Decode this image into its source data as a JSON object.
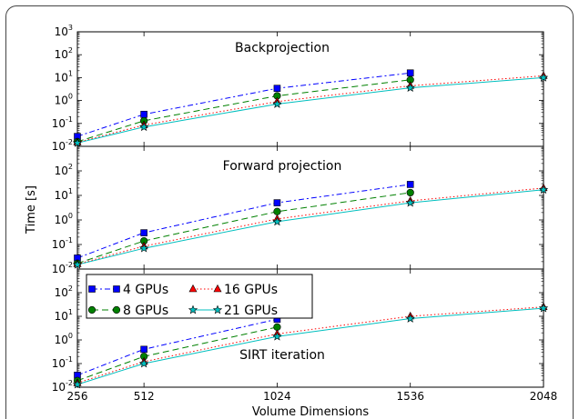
{
  "chart_data": {
    "type": "line",
    "xlabel": "Volume Dimensions",
    "ylabel": "Time [s]",
    "x_ticks": [
      "256",
      "512",
      "1024",
      "1536",
      "2048"
    ],
    "x_range": [
      256,
      2048
    ],
    "y_scale": "log",
    "y_range": [
      0.01,
      1000
    ],
    "y_tick_bases": [
      "10",
      "10",
      "10",
      "10",
      "10",
      "10"
    ],
    "y_tick_exps": [
      "-2",
      "-1",
      "0",
      "1",
      "2",
      "3"
    ],
    "legend": {
      "placement": "upper-left of bottom panel",
      "columns": 2
    },
    "series_styles": [
      {
        "name": "4 GPUs",
        "color": "#0000ff",
        "marker": "square",
        "dash": "6,3,2,3"
      },
      {
        "name": "8 GPUs",
        "color": "#008000",
        "marker": "circle",
        "dash": "7,4"
      },
      {
        "name": "16 GPUs",
        "color": "#ff0000",
        "marker": "triangle",
        "dash": "1.5,2.5"
      },
      {
        "name": "21 GPUs",
        "color": "#00bfbf",
        "marker": "star",
        "dash": ""
      }
    ],
    "panels": [
      {
        "title": "Backprojection",
        "series": [
          {
            "name": "4 GPUs",
            "x": [
              256,
              512,
              1024,
              1536
            ],
            "y": [
              0.027,
              0.25,
              3.4,
              16
            ]
          },
          {
            "name": "8 GPUs",
            "x": [
              256,
              512,
              1024,
              1536
            ],
            "y": [
              0.016,
              0.13,
              1.6,
              8
            ]
          },
          {
            "name": "16 GPUs",
            "x": [
              256,
              512,
              1024,
              1536,
              2048
            ],
            "y": [
              0.015,
              0.085,
              0.9,
              4.4,
              12
            ]
          },
          {
            "name": "21 GPUs",
            "x": [
              256,
              512,
              1024,
              1536,
              2048
            ],
            "y": [
              0.014,
              0.07,
              0.7,
              3.6,
              10
            ]
          }
        ]
      },
      {
        "title": "Forward  projection",
        "series": [
          {
            "name": "4 GPUs",
            "x": [
              256,
              512,
              1024,
              1536
            ],
            "y": [
              0.028,
              0.3,
              5,
              28
            ]
          },
          {
            "name": "8 GPUs",
            "x": [
              256,
              512,
              1024,
              1536
            ],
            "y": [
              0.017,
              0.14,
              2.2,
              13
            ]
          },
          {
            "name": "16 GPUs",
            "x": [
              256,
              512,
              1024,
              1536,
              2048
            ],
            "y": [
              0.016,
              0.085,
              1.1,
              6,
              20
            ]
          },
          {
            "name": "21 GPUs",
            "x": [
              256,
              512,
              1024,
              1536,
              2048
            ],
            "y": [
              0.015,
              0.07,
              0.85,
              5,
              17
            ]
          }
        ]
      },
      {
        "title": "SIRT iteration",
        "series": [
          {
            "name": "4 GPUs",
            "x": [
              256,
              512,
              1024
            ],
            "y": [
              0.032,
              0.4,
              7.5
            ]
          },
          {
            "name": "8 GPUs",
            "x": [
              256,
              512,
              1024
            ],
            "y": [
              0.019,
              0.2,
              3.5
            ]
          },
          {
            "name": "16 GPUs",
            "x": [
              256,
              512,
              1024,
              1536,
              2048
            ],
            "y": [
              0.015,
              0.12,
              1.8,
              10,
              25
            ]
          },
          {
            "name": "21 GPUs",
            "x": [
              256,
              512,
              1024,
              1536,
              2048
            ],
            "y": [
              0.013,
              0.1,
              1.4,
              8,
              22
            ]
          }
        ]
      }
    ]
  }
}
